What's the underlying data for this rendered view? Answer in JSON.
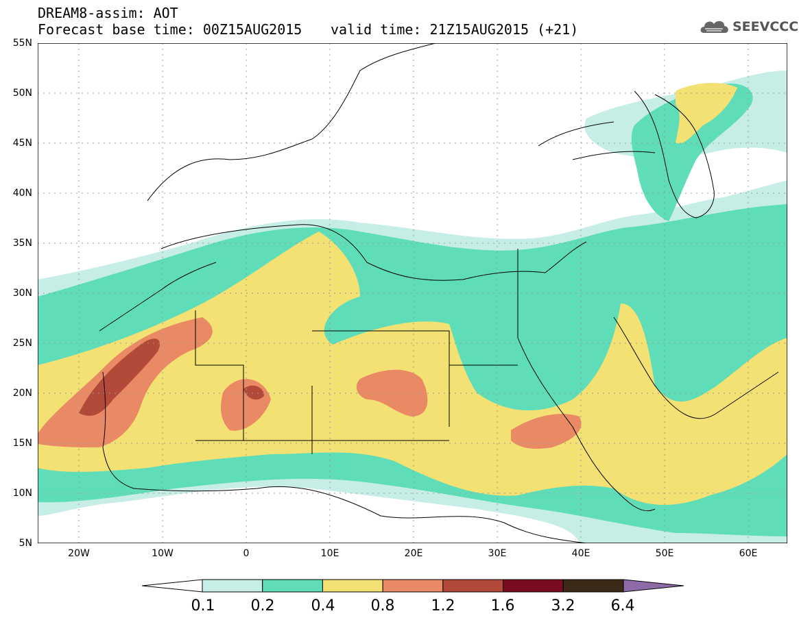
{
  "header": {
    "title_line1": "DREAM8-assim: AOT",
    "title_line2": "Forecast base time: 00Z15AUG2015",
    "valid_time": "valid time: 21Z15AUG2015 (+21)",
    "logo_text": "SEEVCCC",
    "logo_icon": "cloud-icon"
  },
  "axes": {
    "lat_labels": [
      "55N",
      "50N",
      "45N",
      "40N",
      "35N",
      "30N",
      "25N",
      "20N",
      "15N",
      "10N",
      "5N"
    ],
    "lon_labels": [
      "20W",
      "10W",
      "0",
      "10E",
      "20E",
      "30E",
      "40E",
      "50E",
      "60E"
    ],
    "grid": true
  },
  "colorbar": {
    "labels": [
      "0.1",
      "0.2",
      "0.4",
      "0.8",
      "1.2",
      "1.6",
      "3.2",
      "6.4"
    ],
    "colors": [
      "#ffffff",
      "#c6eee6",
      "#5fdcb8",
      "#f3e173",
      "#e98a64",
      "#b34a39",
      "#7a0b20",
      "#3b2a18",
      "#8e6ba6"
    ]
  },
  "map": {
    "variable": "AOT",
    "region": "North Africa, Middle East, Europe"
  }
}
